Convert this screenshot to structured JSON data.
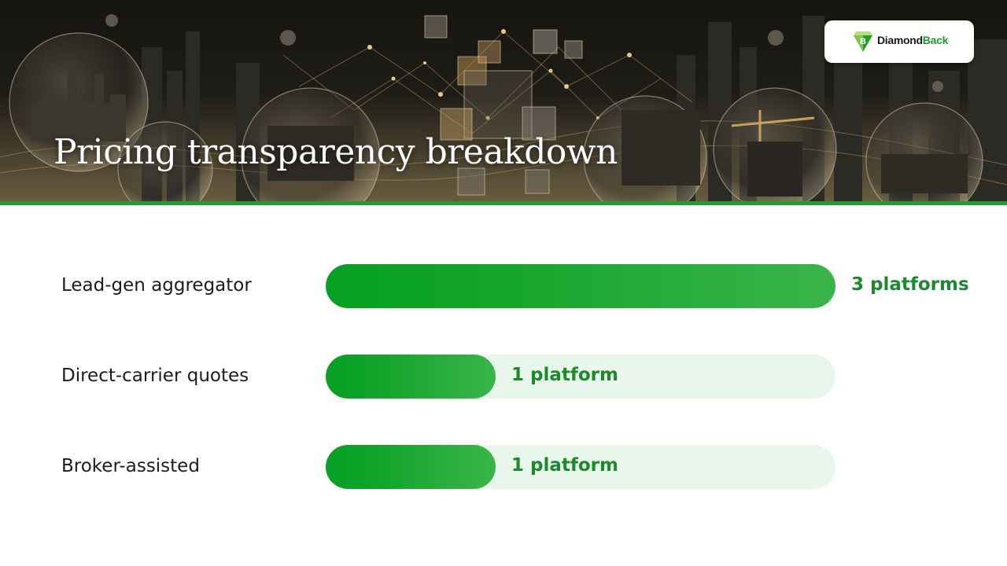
{
  "header": {
    "title": "Pricing transparency breakdown",
    "logo": {
      "brand_main": "Diamond",
      "brand_accent": "Back",
      "mark_letter": "B",
      "icon": "diamond-logo-icon"
    }
  },
  "colors": {
    "accent_green": "#1f9d2b",
    "bar_green": "#0fa22a",
    "track_light": "#e9f6eb",
    "value_text": "#1a8a2a"
  },
  "chart_data": {
    "type": "bar",
    "orientation": "horizontal",
    "categories": [
      "Lead-gen aggregator",
      "Direct-carrier quotes",
      "Broker-assisted"
    ],
    "values": [
      3,
      1,
      1
    ],
    "value_labels": [
      "3 platforms",
      "1 platform",
      "1 platform"
    ],
    "xlim": [
      0,
      3
    ],
    "grid": false,
    "title": "",
    "xlabel": "",
    "ylabel": ""
  }
}
